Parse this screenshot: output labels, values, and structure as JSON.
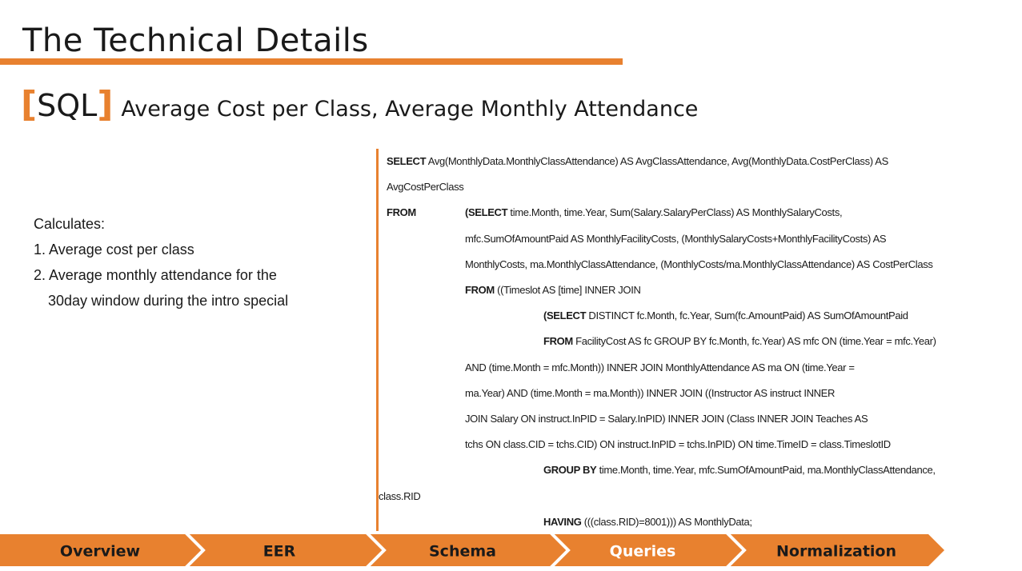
{
  "header": {
    "title": "The Technical Details"
  },
  "subtitle": {
    "open": "[",
    "label": "SQL",
    "close": "]",
    "text": "Average Cost per Class, Average Monthly Attendance"
  },
  "description": {
    "heading": "Calculates:",
    "items": [
      "1. Average cost per class",
      "2. Average monthly attendance for the 30day window during the intro special"
    ]
  },
  "sql": {
    "lines": [
      [
        {
          "text": "SELECT",
          "bold": true
        },
        {
          "text": " Avg(MonthlyData.MonthlyClassAttendance) AS AvgClassAttendance, Avg(MonthlyData.CostPerClass) AS"
        }
      ],
      [
        {
          "text": "AvgCostPerClass"
        }
      ],
      [
        {
          "text": "FROM",
          "bold": true
        },
        {
          "text": "(SELECT",
          "bold": true
        },
        {
          "text": " time.Month, time.Year, Sum(Salary.SalaryPerClass) AS MonthlySalaryCosts,"
        }
      ],
      [
        {
          "text": "mfc.SumOfAmountPaid AS MonthlyFacilityCosts, (MonthlySalaryCosts+MonthlyFacilityCosts) AS"
        }
      ],
      [
        {
          "text": "MonthlyCosts, ma.MonthlyClassAttendance, (MonthlyCosts/ma.MonthlyClassAttendance) AS CostPerClass"
        }
      ],
      [
        {
          "text": "FROM",
          "bold": true
        },
        {
          "text": " ((Timeslot AS [time] INNER JOIN"
        }
      ],
      [
        {
          "text": "(SELECT",
          "bold": true
        },
        {
          "text": " DISTINCT fc.Month, fc.Year, Sum(fc.AmountPaid) AS SumOfAmountPaid"
        }
      ],
      [
        {
          "text": "FROM",
          "bold": true
        },
        {
          "text": " FacilityCost AS fc GROUP BY fc.Month, fc.Year) AS mfc ON (time.Year = mfc.Year)"
        }
      ],
      [
        {
          "text": "AND (time.Month = mfc.Month)) INNER JOIN MonthlyAttendance AS ma ON (time.Year ="
        }
      ],
      [
        {
          "text": "ma.Year) AND (time.Month = ma.Month)) INNER JOIN ((Instructor AS instruct INNER"
        }
      ],
      [
        {
          "text": "JOIN Salary ON instruct.InPID = Salary.InPID) INNER JOIN (Class INNER JOIN Teaches AS"
        }
      ],
      [
        {
          "text": "tchs ON class.CID = tchs.CID) ON instruct.InPID = tchs.InPID) ON time.TimeID = class.TimeslotID"
        }
      ],
      [
        {
          "text": "GROUP BY",
          "bold": true
        },
        {
          "text": " time.Month, time.Year, mfc.SumOfAmountPaid, ma.MonthlyClassAttendance,"
        }
      ],
      [
        {
          "text": "class.RID"
        }
      ],
      [
        {
          "text": "HAVING",
          "bold": true
        },
        {
          "text": " (((class.RID)=8001))) AS MonthlyData;"
        }
      ]
    ]
  },
  "nav": {
    "items": [
      "Overview",
      "EER",
      "Schema",
      "Queries",
      "Normalization"
    ],
    "active": 3
  }
}
